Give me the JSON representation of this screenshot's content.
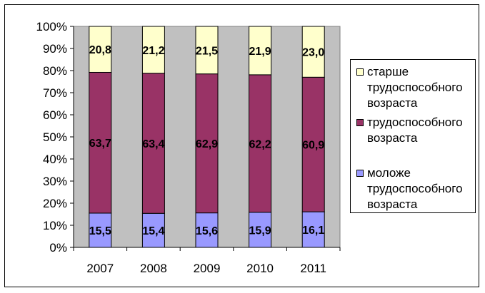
{
  "chart_data": {
    "type": "bar",
    "stacked": true,
    "percent_axis": true,
    "categories": [
      "2007",
      "2008",
      "2009",
      "2010",
      "2011"
    ],
    "series": [
      {
        "name": "моложе трудоспособного возраста",
        "values": [
          15.5,
          15.4,
          15.6,
          15.9,
          16.1
        ],
        "labels": [
          "15,5",
          "15,4",
          "15,6",
          "15,9",
          "16,1"
        ],
        "color": "#9999ff"
      },
      {
        "name": "трудоспособного возраста",
        "values": [
          63.7,
          63.4,
          62.9,
          62.2,
          60.9
        ],
        "labels": [
          "63,7",
          "63,4",
          "62,9",
          "62,2",
          "60,9"
        ],
        "color": "#993366"
      },
      {
        "name": "старше трудоспособного возраста",
        "values": [
          20.8,
          21.2,
          21.5,
          21.9,
          23.0
        ],
        "labels": [
          "20,8",
          "21,2",
          "21,5",
          "21,9",
          "23,0"
        ],
        "color": "#ffffcc"
      }
    ],
    "ylim": [
      0,
      100
    ],
    "yticks": [
      "0%",
      "10%",
      "20%",
      "30%",
      "40%",
      "50%",
      "60%",
      "70%",
      "80%",
      "90%",
      "100%"
    ],
    "plot_background": "#c0c0c0",
    "grid": false,
    "legend_position": "right",
    "title": "",
    "xlabel": "",
    "ylabel": ""
  },
  "legend": {
    "items": [
      {
        "label": "старше\nтрудоспособного\nвозраста",
        "color": "#ffffcc"
      },
      {
        "label": "трудоспособного\nвозраста",
        "color": "#993366"
      },
      {
        "label": "моложе\nтрудоспособного\nвозраста",
        "color": "#9999ff"
      }
    ]
  }
}
